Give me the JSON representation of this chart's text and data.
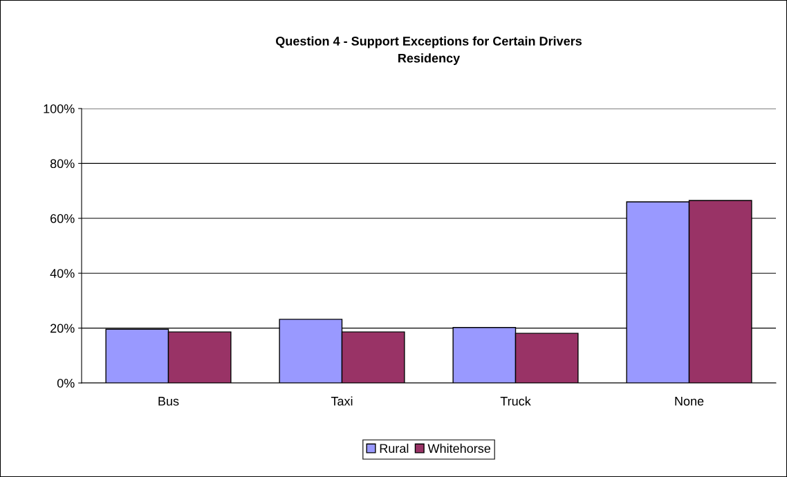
{
  "chart_data": {
    "type": "bar",
    "title": "Question 4 - Support Exceptions for Certain Drivers\nResidency",
    "categories": [
      "Bus",
      "Taxi",
      "Truck",
      "None"
    ],
    "series": [
      {
        "name": "Rural",
        "color": "#9999ff",
        "values": [
          19.6,
          23.2,
          20.2,
          66.0
        ]
      },
      {
        "name": "Whitehorse",
        "color": "#993366",
        "values": [
          18.6,
          18.6,
          18.1,
          66.5
        ]
      }
    ],
    "ylim": [
      0,
      100
    ],
    "yticks": [
      {
        "value": 0,
        "label": "0%"
      },
      {
        "value": 20,
        "label": "20%"
      },
      {
        "value": 40,
        "label": "40%"
      },
      {
        "value": 60,
        "label": "60%"
      },
      {
        "value": 80,
        "label": "80%"
      },
      {
        "value": 100,
        "label": "100%"
      }
    ],
    "grid": "y",
    "legend": "bottom"
  }
}
